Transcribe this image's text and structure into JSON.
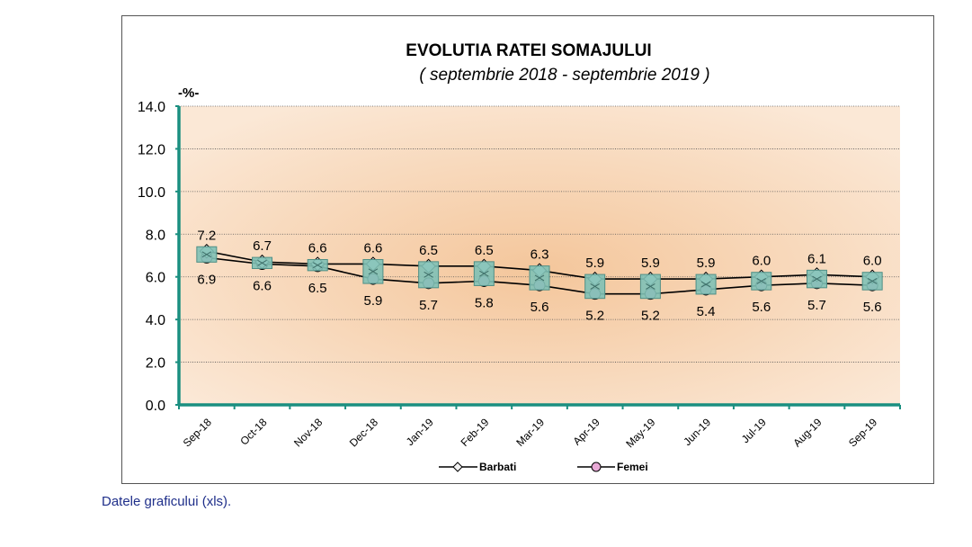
{
  "chart_data": {
    "type": "line",
    "title": "EVOLUTIA RATEI SOMAJULUI",
    "subtitle": "( septembrie 2018 - septembrie 2019 )",
    "ylabel": "-%-",
    "xlabel": "",
    "ylim": [
      0,
      14
    ],
    "yticks": [
      "0.0",
      "2.0",
      "4.0",
      "6.0",
      "8.0",
      "10.0",
      "12.0",
      "14.0"
    ],
    "grid": true,
    "legend": "bottom",
    "categories": [
      "Sep-18",
      "Oct-18",
      "Nov-18",
      "Dec-18",
      "Jan-19",
      "Feb-19",
      "Mar-19",
      "Apr-19",
      "May-19",
      "Jun-19",
      "Jul-19",
      "Aug-19",
      "Sep-19"
    ],
    "series": [
      {
        "name": "Barbati",
        "values": [
          7.2,
          6.7,
          6.6,
          6.6,
          6.5,
          6.5,
          6.3,
          5.9,
          5.9,
          5.9,
          6.0,
          6.1,
          6.0
        ],
        "labels": [
          "7.2",
          "6.7",
          "6.6",
          "6.6",
          "6.5",
          "6.5",
          "6.3",
          "5.9",
          "5.9",
          "5.9",
          "6.0",
          "6.1",
          "6.0"
        ],
        "color": "#000000",
        "marker_fill": "#f2f2f2"
      },
      {
        "name": "Femei",
        "values": [
          6.9,
          6.6,
          6.5,
          5.9,
          5.7,
          5.8,
          5.6,
          5.2,
          5.2,
          5.4,
          5.6,
          5.7,
          5.6
        ],
        "labels": [
          "6.9",
          "6.6",
          "6.5",
          "5.9",
          "5.7",
          "5.8",
          "5.6",
          "5.2",
          "5.2",
          "5.4",
          "5.6",
          "5.7",
          "5.6"
        ],
        "color": "#000000",
        "marker_fill": "#e8a9d6"
      }
    ],
    "colors": {
      "plot_bg_center": "#f4c69b",
      "plot_bg_edge": "#fbe8d6",
      "axis": "#1a8f80",
      "grid": "#555555",
      "square_marker": "#7fc1b6"
    }
  },
  "footer": {
    "link_text": "Datele graficului (xls)."
  }
}
